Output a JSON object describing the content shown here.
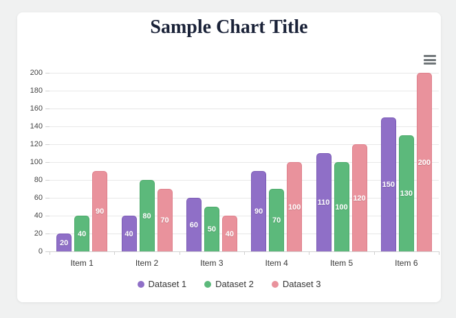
{
  "page": {
    "background_color": "#f0f1f1"
  },
  "toolbar": {
    "menu_icon": "hamburger-menu-icon",
    "menu_color": "#6e7477"
  },
  "chart_data": {
    "type": "bar",
    "title": "Sample Chart Title",
    "title_color": "#1a2238",
    "categories": [
      "Item 1",
      "Item 2",
      "Item 3",
      "Item 4",
      "Item 5",
      "Item 6"
    ],
    "series": [
      {
        "name": "Dataset 1",
        "color": "#8f6fc7",
        "border_color": "#7a5ab5",
        "values": [
          20,
          40,
          60,
          90,
          110,
          150
        ]
      },
      {
        "name": "Dataset 2",
        "color": "#5cb97b",
        "border_color": "#49a868",
        "values": [
          40,
          80,
          50,
          70,
          100,
          130
        ]
      },
      {
        "name": "Dataset 3",
        "color": "#e9929c",
        "border_color": "#de7f8b",
        "values": [
          90,
          70,
          40,
          100,
          120,
          200
        ]
      }
    ],
    "ylim": [
      0,
      200
    ],
    "ytick_step": 20,
    "yticks": [
      0,
      20,
      40,
      60,
      80,
      100,
      120,
      140,
      160,
      180,
      200
    ],
    "grid": true,
    "legend_position": "bottom",
    "value_labels": "white, centered inside bars",
    "xlabel": "",
    "ylabel": ""
  }
}
